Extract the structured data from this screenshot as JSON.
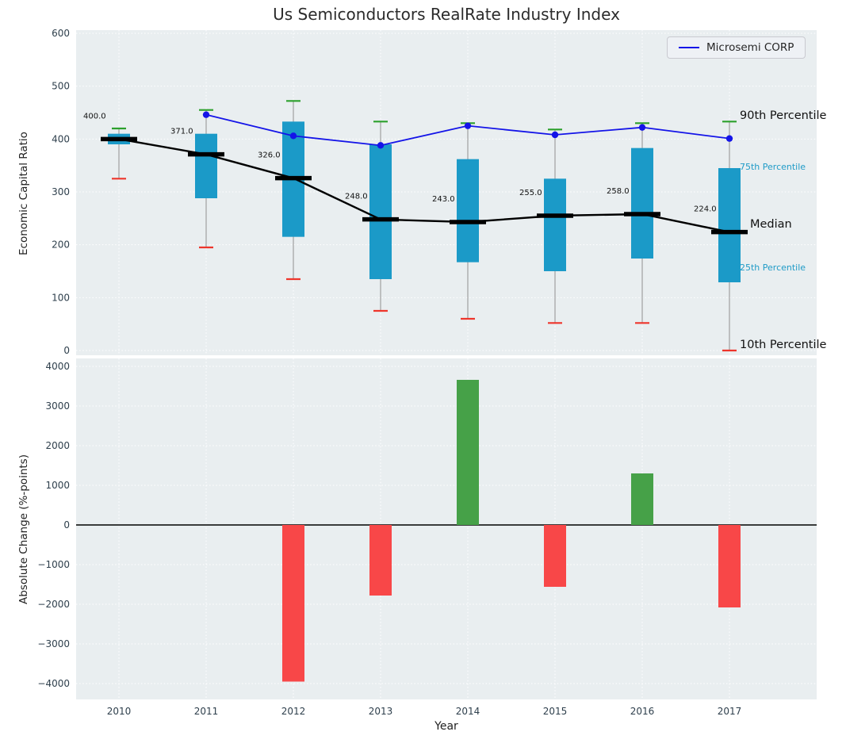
{
  "page": {
    "title": "Us Semiconductors RealRate Industry Index",
    "xlabel": "Year",
    "ylabel_top": "Economic Capital Ratio",
    "ylabel_bottom": "Absolute Change (%-points)",
    "legend_label": "Microsemi CORP",
    "annotations": {
      "p90": "90th Percentile",
      "p75": "75th Percentile",
      "median": "Median",
      "p25": "25th Percentile",
      "p10": "10th Percentile"
    }
  },
  "colors": {
    "axes_bg": "#e9eef0",
    "grid": "#ffffff",
    "box_fill": "#1b9ac8",
    "whisker": "#a0a0a0",
    "cap_high": "#2ca02c",
    "cap_low": "#ee352b",
    "median_line": "#000000",
    "company_line": "#1414e8",
    "bar_positive": "#46a148",
    "bar_negative": "#f84748",
    "tick_label": "#2e3f4c",
    "percentile_label": "#1f9bc7"
  },
  "chart_data": [
    {
      "type": "boxplot",
      "title": "Us Semiconductors RealRate Industry Index",
      "ylabel": "Economic Capital Ratio",
      "ylim": [
        0,
        600
      ],
      "yticks": [
        0,
        100,
        200,
        300,
        400,
        500,
        600
      ],
      "grid": true,
      "legend_position": "upper right",
      "categories": [
        2010,
        2011,
        2012,
        2013,
        2014,
        2015,
        2016,
        2017
      ],
      "series": [
        {
          "name": "90th Percentile",
          "role": "p90",
          "values": [
            420,
            455,
            472,
            433,
            430,
            418,
            430,
            433
          ]
        },
        {
          "name": "75th Percentile",
          "role": "p75",
          "values": [
            410,
            410,
            433,
            390,
            362,
            325,
            383,
            345
          ]
        },
        {
          "name": "Median",
          "role": "median",
          "values": [
            400,
            371,
            326,
            248,
            243,
            255,
            258,
            224
          ],
          "labels": [
            "400.0",
            "371.0",
            "326.0",
            "248.0",
            "243.0",
            "255.0",
            "258.0",
            "224.0"
          ]
        },
        {
          "name": "25th Percentile",
          "role": "p25",
          "values": [
            390,
            288,
            215,
            135,
            167,
            150,
            174,
            129
          ]
        },
        {
          "name": "10th Percentile",
          "role": "p10",
          "values": [
            325,
            195,
            135,
            75,
            60,
            52,
            52,
            0
          ]
        },
        {
          "name": "Microsemi CORP",
          "role": "company",
          "values": [
            null,
            446,
            406,
            388,
            425,
            408,
            422,
            401
          ]
        }
      ]
    },
    {
      "type": "bar",
      "ylabel": "Absolute Change (%-points)",
      "xlabel": "Year",
      "ylim": [
        -4000,
        4000
      ],
      "yticks": [
        -4000,
        -3000,
        -2000,
        -1000,
        0,
        1000,
        2000,
        3000,
        4000
      ],
      "grid": true,
      "categories": [
        2010,
        2011,
        2012,
        2013,
        2014,
        2015,
        2016,
        2017
      ],
      "values": [
        null,
        null,
        -3950,
        -1780,
        3660,
        -1560,
        1300,
        -2080
      ],
      "positive_color": "#46a148",
      "negative_color": "#f84748"
    }
  ]
}
